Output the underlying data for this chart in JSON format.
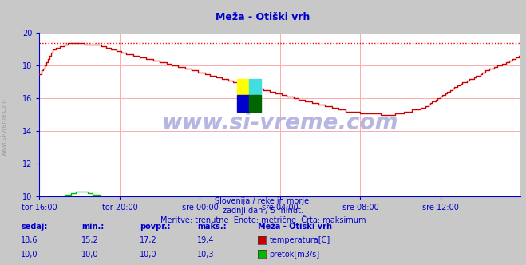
{
  "title": "Meža - Otiški vrh",
  "fig_bg_color": "#c8c8c8",
  "plot_bg_color": "#ffffff",
  "grid_color": "#ffaaaa",
  "ylim": [
    10,
    20
  ],
  "yticks": [
    10,
    12,
    14,
    16,
    18,
    20
  ],
  "xlim": [
    0,
    288
  ],
  "xtick_labels": [
    "tor 16:00",
    "tor 20:00",
    "sre 00:00",
    "sre 04:00",
    "sre 08:00",
    "sre 12:00"
  ],
  "xtick_positions": [
    0,
    48,
    96,
    144,
    192,
    240
  ],
  "temp_color": "#cc0000",
  "flow_color": "#00bb00",
  "max_line_color": "#ff0000",
  "axis_color": "#0000cc",
  "text_color": "#0000cc",
  "watermark_color": "#aaaadd",
  "watermark": "www.si-vreme.com",
  "side_text": "www.si-vreme.com",
  "subtitle1": "Slovenija / reke in morje.",
  "subtitle2": "zadnji dan / 5 minut.",
  "subtitle3": "Meritve: trenutne  Enote: metrične  Črta: maksimum",
  "legend_title": "Meža - Otiški vrh",
  "legend_rows": [
    {
      "sedaj": "18,6",
      "min": "15,2",
      "povpr": "17,2",
      "maks": "19,4",
      "color": "#cc0000",
      "label": "temperatura[C]"
    },
    {
      "sedaj": "10,0",
      "min": "10,0",
      "povpr": "10,0",
      "maks": "10,3",
      "color": "#00bb00",
      "label": "pretok[m3/s]"
    }
  ],
  "max_temp": 19.4,
  "flow_value": 10.0
}
